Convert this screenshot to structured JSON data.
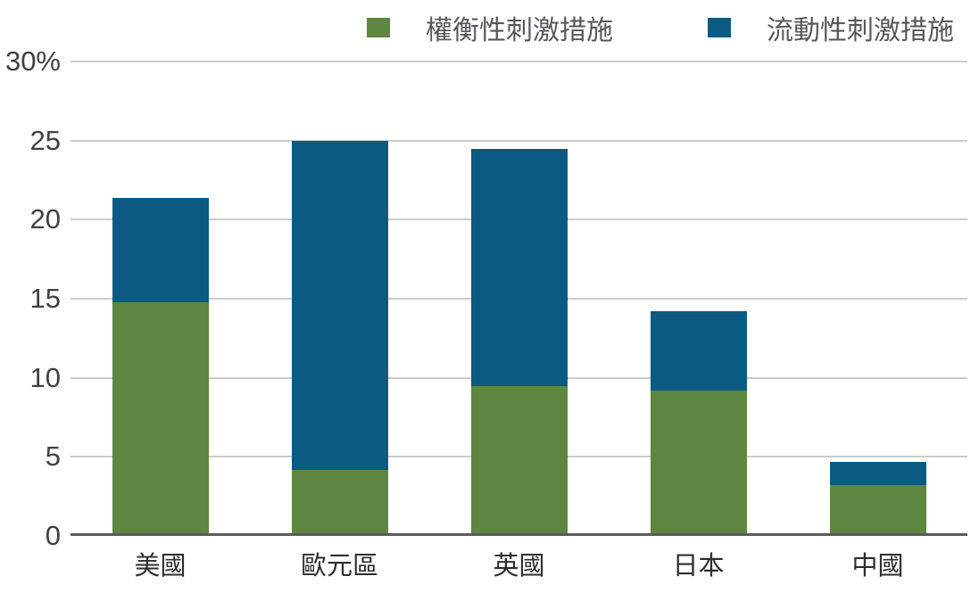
{
  "chart_data": {
    "type": "bar",
    "stacked": true,
    "title": "",
    "xlabel": "",
    "ylabel": "",
    "categories": [
      "美國",
      "歐元區",
      "英國",
      "日本",
      "中國"
    ],
    "series": [
      {
        "name": "權衡性刺激措施",
        "color": "#5F8640",
        "values": [
          14.8,
          4.2,
          9.5,
          9.2,
          3.2
        ]
      },
      {
        "name": "流動性刺激措施",
        "color": "#0B5A83",
        "values": [
          6.6,
          20.8,
          15.0,
          5.0,
          1.5
        ]
      }
    ],
    "totals": [
      21.4,
      25.0,
      24.5,
      14.2,
      4.7
    ],
    "ylim": [
      0,
      30
    ],
    "ytick_values": [
      30,
      25,
      20,
      15,
      10,
      5,
      0
    ],
    "yticks": [
      "30%",
      "25",
      "20",
      "15",
      "10",
      "5",
      "0"
    ],
    "grid": true,
    "legend_position": "top"
  },
  "colors": {
    "grid": "#c9cccd",
    "axis": "#595a5c",
    "tick_text": "#3e4043",
    "category_text": "#2c2d2f",
    "legend_text": "#54585e"
  }
}
